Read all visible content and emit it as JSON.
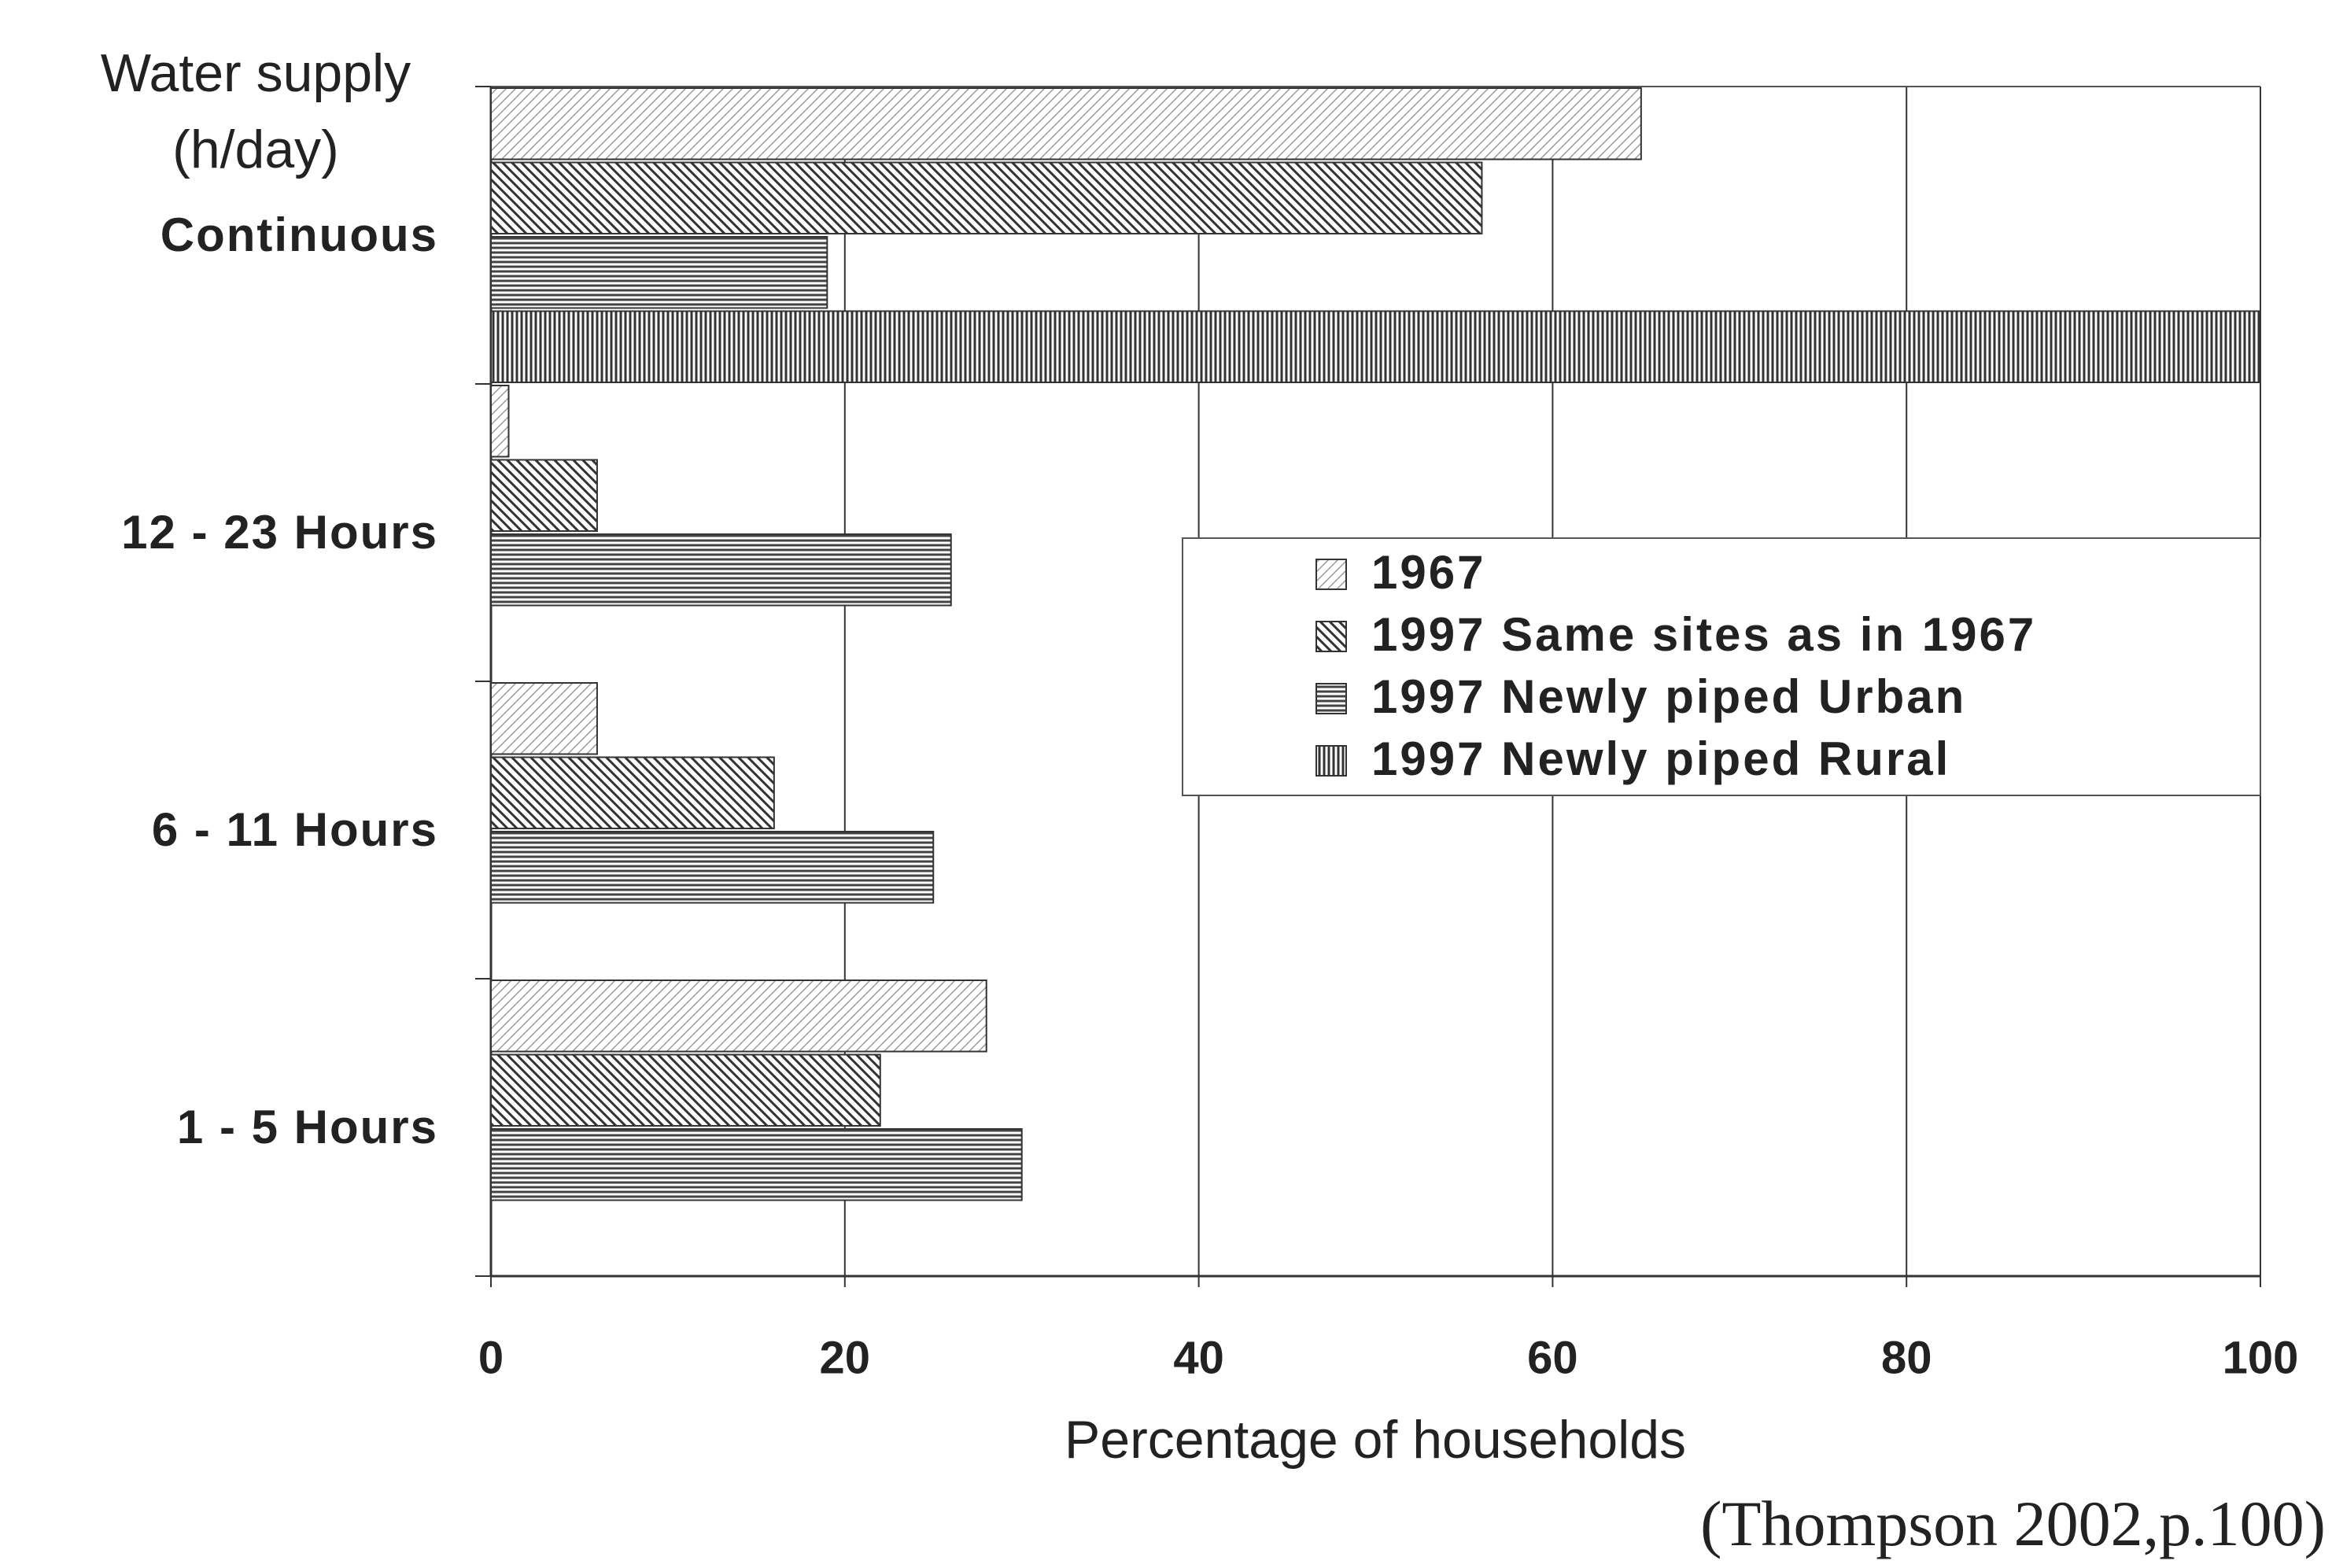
{
  "chart_data": {
    "type": "bar",
    "orientation": "horizontal",
    "ylabel": [
      "Water supply",
      "(h/day)"
    ],
    "xlabel": "Percentage of households",
    "note": "(Thompson 2002,p.100)",
    "categories": [
      "Continuous",
      "12 - 23 Hours",
      "6 - 11 Hours",
      "1 - 5 Hours"
    ],
    "series": [
      {
        "name": "1967",
        "color": "#9a9a9a",
        "pattern": "diagonal-up",
        "values": [
          65,
          1,
          6,
          28
        ]
      },
      {
        "name": "1997 Same sites as in 1967",
        "color": "#333333",
        "pattern": "diagonal-down",
        "values": [
          56,
          6,
          16,
          22
        ]
      },
      {
        "name": "1997 Newly piped Urban",
        "color": "#444444",
        "pattern": "horizontal",
        "values": [
          19,
          26,
          25,
          30
        ]
      },
      {
        "name": "1997 Newly piped Rural",
        "color": "#333333",
        "pattern": "vertical",
        "values": [
          100,
          0,
          0,
          0
        ]
      }
    ],
    "xlim": [
      0,
      100
    ],
    "xticks": [
      0,
      20,
      40,
      60,
      80,
      100
    ],
    "grid": true,
    "legend": "right"
  }
}
